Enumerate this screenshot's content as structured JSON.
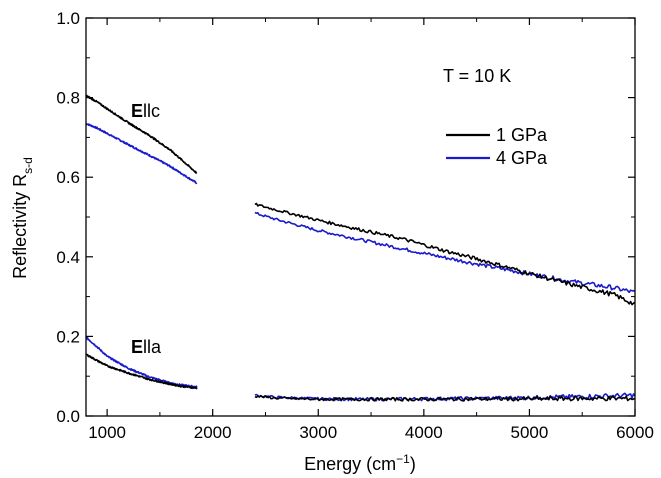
{
  "chart_data": {
    "type": "line",
    "title": "",
    "xlabel": "Energy (cm",
    "xlabel_sup": "−1",
    "xlabel_end": ")",
    "ylabel": "Reflectivity R",
    "ylabel_sub": "s-d",
    "xlim": [
      800,
      6000
    ],
    "ylim": [
      0.0,
      1.0
    ],
    "x_ticks": [
      1000,
      2000,
      3000,
      4000,
      5000,
      6000
    ],
    "x_tick_labels": [
      "1000",
      "2000",
      "3000",
      "4000",
      "5000",
      "6000"
    ],
    "y_ticks": [
      0.0,
      0.2,
      0.4,
      0.6,
      0.8,
      1.0
    ],
    "y_tick_labels": [
      "0.0",
      "0.2",
      "0.4",
      "0.6",
      "0.8",
      "1.0"
    ],
    "legend_position": "top-right",
    "annotations": {
      "temperature": "T = 10 K",
      "polarization_c_bold": "E",
      "polarization_c_rest": "llc",
      "polarization_a_bold": "E",
      "polarization_a_rest": "lla"
    },
    "series": [
      {
        "name": "1 GPa",
        "color": "#000000",
        "segments": [
          {
            "label": "E||c low",
            "x": [
              800,
              900,
              1000,
              1200,
              1400,
              1600,
              1700,
              1850
            ],
            "y": [
              0.805,
              0.79,
              0.772,
              0.737,
              0.705,
              0.668,
              0.645,
              0.61
            ]
          },
          {
            "label": "E||c high",
            "x": [
              2400,
              2600,
              2800,
              3000,
              3400,
              3800,
              4200,
              4600,
              5000,
              5400,
              5800,
              6000
            ],
            "y": [
              0.532,
              0.518,
              0.505,
              0.492,
              0.468,
              0.445,
              0.415,
              0.388,
              0.358,
              0.33,
              0.305,
              0.28
            ]
          },
          {
            "label": "E||a low",
            "x": [
              800,
              900,
              1000,
              1200,
              1400,
              1600,
              1700,
              1850
            ],
            "y": [
              0.155,
              0.14,
              0.126,
              0.108,
              0.092,
              0.08,
              0.075,
              0.07
            ]
          },
          {
            "label": "E||a high",
            "x": [
              2400,
              2600,
              3000,
              3500,
              4000,
              4500,
              5000,
              5500,
              6000
            ],
            "y": [
              0.05,
              0.045,
              0.042,
              0.042,
              0.042,
              0.043,
              0.043,
              0.044,
              0.044
            ]
          }
        ]
      },
      {
        "name": "4 GPa",
        "color": "#1a1acd",
        "segments": [
          {
            "label": "E||c low",
            "x": [
              800,
              900,
              1000,
              1200,
              1400,
              1600,
              1700,
              1850
            ],
            "y": [
              0.735,
              0.724,
              0.71,
              0.682,
              0.655,
              0.627,
              0.61,
              0.585
            ]
          },
          {
            "label": "E||c high",
            "x": [
              2400,
              2600,
              2800,
              3000,
              3400,
              3800,
              4200,
              4600,
              5000,
              5400,
              5800,
              6000
            ],
            "y": [
              0.51,
              0.494,
              0.48,
              0.466,
              0.443,
              0.42,
              0.398,
              0.377,
              0.357,
              0.338,
              0.322,
              0.31
            ]
          },
          {
            "label": "E||a low",
            "x": [
              800,
              900,
              1000,
              1200,
              1400,
              1600,
              1700,
              1850
            ],
            "y": [
              0.198,
              0.175,
              0.15,
              0.12,
              0.098,
              0.083,
              0.078,
              0.073
            ]
          },
          {
            "label": "E||a high",
            "x": [
              2400,
              2600,
              3000,
              3500,
              4000,
              4500,
              5000,
              5500,
              6000
            ],
            "y": [
              0.052,
              0.047,
              0.043,
              0.042,
              0.043,
              0.044,
              0.046,
              0.049,
              0.052
            ]
          }
        ]
      }
    ]
  }
}
